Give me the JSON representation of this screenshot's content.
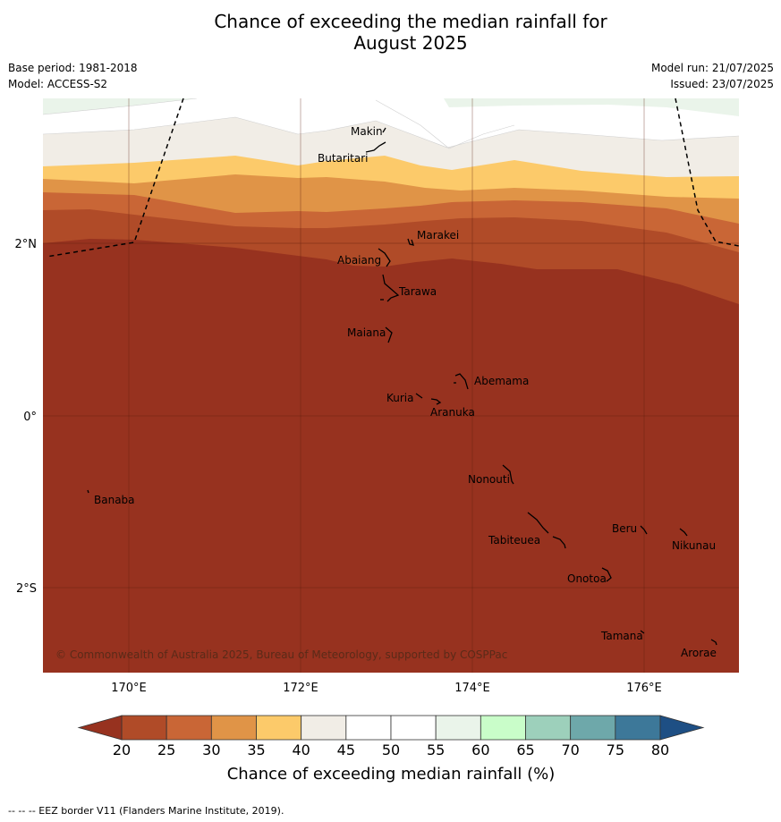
{
  "title_line1": "Chance of exceeding the median rainfall for",
  "title_line2": "August 2025",
  "meta_left": {
    "base_period": "Base period: 1981-2018",
    "model": "Model: ACCESS-S2"
  },
  "meta_right": {
    "model_run": "Model run: 21/07/2025",
    "issued": "Issued: 23/07/2025"
  },
  "map": {
    "lon_labels": [
      "170°E",
      "172°E",
      "174°E",
      "176°E"
    ],
    "lat_labels": [
      "2°N",
      "0°",
      "2°S"
    ],
    "copyright": "© Commonwealth of Australia 2025, Bureau of Meteorology, supported by COSPPac",
    "islands": [
      {
        "name": "Makin"
      },
      {
        "name": "Butaritari"
      },
      {
        "name": "Marakei"
      },
      {
        "name": "Abaiang"
      },
      {
        "name": "Tarawa"
      },
      {
        "name": "Maiana"
      },
      {
        "name": "Abemama"
      },
      {
        "name": "Kuria"
      },
      {
        "name": "Aranuka"
      },
      {
        "name": "Nonouti"
      },
      {
        "name": "Banaba"
      },
      {
        "name": "Beru"
      },
      {
        "name": "Nikunau"
      },
      {
        "name": "Tabiteuea"
      },
      {
        "name": "Onotoa"
      },
      {
        "name": "Tamana"
      },
      {
        "name": "Arorae"
      }
    ]
  },
  "colorbar": {
    "ticks": [
      "20",
      "25",
      "30",
      "35",
      "40",
      "45",
      "50",
      "55",
      "60",
      "65",
      "70",
      "75",
      "80"
    ],
    "colors": [
      "#b04b28",
      "#c96636",
      "#e09447",
      "#fcca6a",
      "#f1ede6",
      "#ffffff",
      "#ffffff",
      "#eaf4ea",
      "#c9fdc9",
      "#9dd0bb",
      "#6ea8aa",
      "#3d7899"
    ],
    "low_color": "#97321f",
    "high_color": "#1e4f84",
    "label": "Chance of exceeding median rainfall (%)"
  },
  "footnote": "--  --  -- EEZ border V11 (Flanders Marine Institute, 2019)."
}
